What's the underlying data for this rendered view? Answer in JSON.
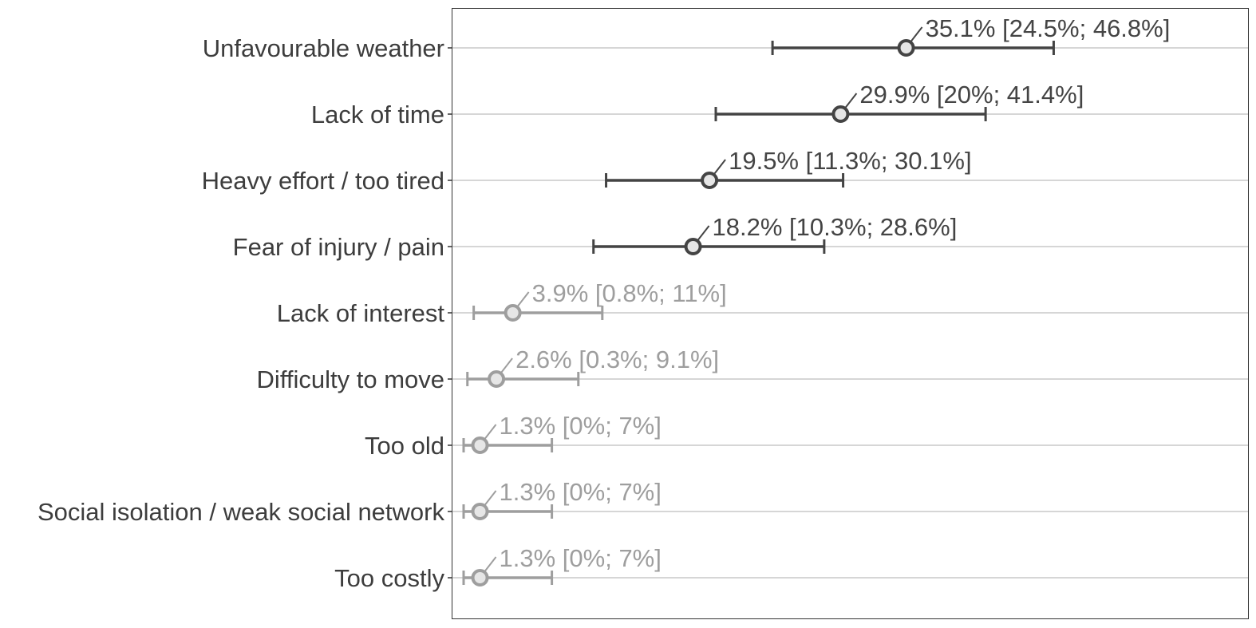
{
  "chart_data": {
    "type": "scatter",
    "xlim": [
      0,
      60
    ],
    "grid": "horizontal",
    "legend": "none",
    "highlight_color": "#444444",
    "muted_color": "#9e9e9e",
    "point_fill": "#e6e6e6",
    "categories": [
      "Unfavourable weather",
      "Lack of time",
      "Heavy effort / too tired",
      "Fear of injury / pain",
      "Lack of interest",
      "Difficulty to move",
      "Too old",
      "Social isolation / weak social network",
      "Too costly"
    ],
    "points": [
      {
        "category": "Unfavourable weather",
        "value": 35.1,
        "lower": 24.5,
        "upper": 46.8,
        "label": "35.1% [24.5%; 46.8%]",
        "highlight": true
      },
      {
        "category": "Lack of time",
        "value": 29.9,
        "lower": 20,
        "upper": 41.4,
        "label": "29.9% [20%; 41.4%]",
        "highlight": true
      },
      {
        "category": "Heavy effort / too tired",
        "value": 19.5,
        "lower": 11.3,
        "upper": 30.1,
        "label": "19.5% [11.3%; 30.1%]",
        "highlight": true
      },
      {
        "category": "Fear of injury / pain",
        "value": 18.2,
        "lower": 10.3,
        "upper": 28.6,
        "label": "18.2% [10.3%; 28.6%]",
        "highlight": true
      },
      {
        "category": "Lack of interest",
        "value": 3.9,
        "lower": 0.8,
        "upper": 11,
        "label": "3.9% [0.8%; 11%]",
        "highlight": false
      },
      {
        "category": "Difficulty to move",
        "value": 2.6,
        "lower": 0.3,
        "upper": 9.1,
        "label": "2.6% [0.3%; 9.1%]",
        "highlight": false
      },
      {
        "category": "Too old",
        "value": 1.3,
        "lower": 0,
        "upper": 7,
        "label": "1.3% [0%; 7%]",
        "highlight": false
      },
      {
        "category": "Social isolation / weak social network",
        "value": 1.3,
        "lower": 0,
        "upper": 7,
        "label": "1.3% [0%; 7%]",
        "highlight": false
      },
      {
        "category": "Too costly",
        "value": 1.3,
        "lower": 0,
        "upper": 7,
        "label": "1.3% [0%; 7%]",
        "highlight": false
      }
    ]
  }
}
